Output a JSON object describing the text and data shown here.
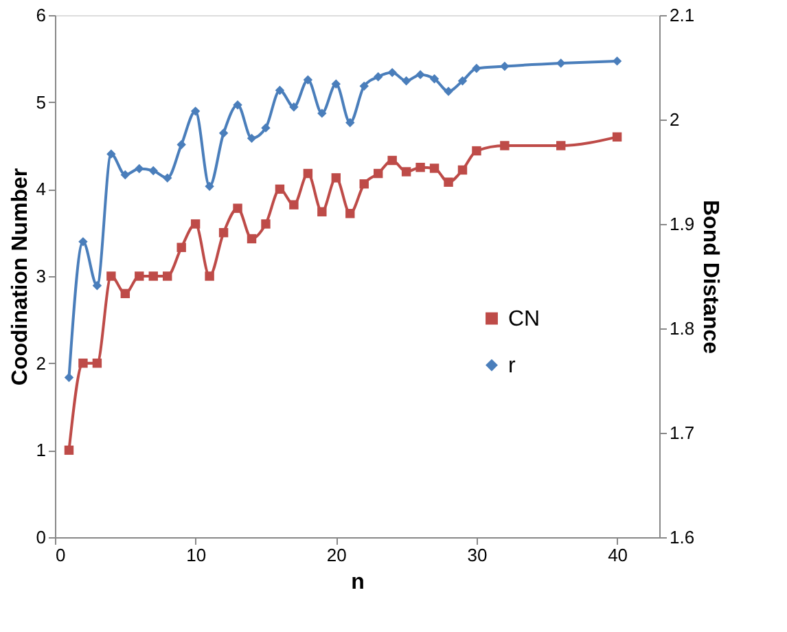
{
  "chart_data": {
    "type": "line",
    "xlabel": "n",
    "ylabel": "Coodination Number",
    "y2label": "Bond Distance",
    "xlim": [
      0,
      43
    ],
    "xticks": [
      0,
      10,
      20,
      30,
      40
    ],
    "ylim": [
      0,
      6
    ],
    "yticks": [
      0,
      1,
      2,
      3,
      4,
      5,
      6
    ],
    "y2lim": [
      1.6,
      2.1
    ],
    "y2ticks": [
      1.6,
      1.7,
      1.8,
      1.9,
      2,
      2.1
    ],
    "grid": false,
    "legend": "right",
    "line_style": "solid",
    "series": [
      {
        "name": "CN",
        "color": "#be4b48",
        "marker": "square",
        "x": [
          1,
          2,
          3,
          4,
          5,
          6,
          7,
          8,
          9,
          10,
          11,
          12,
          13,
          14,
          15,
          16,
          17,
          18,
          19,
          20,
          21,
          22,
          23,
          24,
          25,
          26,
          27,
          28,
          29,
          30,
          32,
          36,
          40
        ],
        "values": [
          1.0,
          2.0,
          2.0,
          3.0,
          2.8,
          3.0,
          3.0,
          3.0,
          3.33,
          3.6,
          3.0,
          3.5,
          3.78,
          3.43,
          3.6,
          4.0,
          3.82,
          4.18,
          3.74,
          4.13,
          3.72,
          4.06,
          4.18,
          4.33,
          4.2,
          4.25,
          4.24,
          4.08,
          4.22,
          4.44,
          4.5,
          4.5,
          4.6
        ]
      },
      {
        "name": "r",
        "color": "#4a7ebb",
        "marker": "diamond",
        "axis": "y2",
        "x": [
          1,
          2,
          3,
          4,
          5,
          6,
          7,
          8,
          9,
          10,
          11,
          12,
          13,
          14,
          15,
          16,
          17,
          18,
          19,
          20,
          21,
          22,
          23,
          24,
          25,
          26,
          27,
          28,
          29,
          30,
          32,
          36,
          40
        ],
        "values": [
          1.753,
          1.883,
          1.841,
          1.967,
          1.947,
          1.953,
          1.951,
          1.944,
          1.976,
          2.008,
          1.936,
          1.987,
          2.014,
          1.982,
          1.992,
          2.028,
          2.012,
          2.038,
          2.006,
          2.034,
          1.997,
          2.032,
          2.041,
          2.045,
          2.037,
          2.043,
          2.039,
          2.027,
          2.037,
          2.049,
          2.051,
          2.054,
          2.056
        ]
      }
    ]
  }
}
